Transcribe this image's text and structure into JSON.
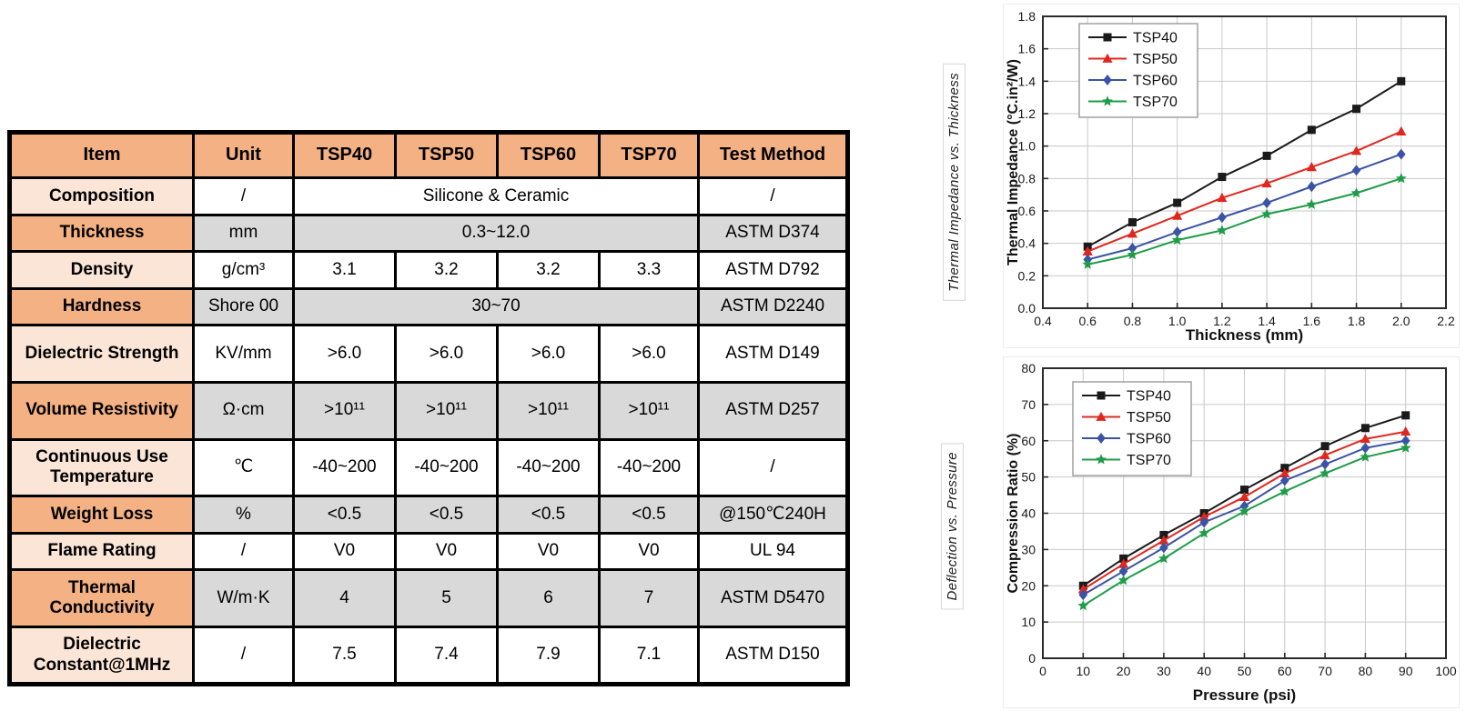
{
  "table": {
    "headers": [
      "Item",
      "Unit",
      "TSP40",
      "TSP50",
      "TSP60",
      "TSP70",
      "Test Method"
    ],
    "rows": [
      {
        "item": "Composition",
        "unit": "/",
        "merged_value": "Silicone & Ceramic",
        "test_method": "/"
      },
      {
        "item": "Thickness",
        "unit": "mm",
        "merged_value": "0.3~12.0",
        "test_method": "ASTM D374"
      },
      {
        "item": "Density",
        "unit": "g/cm³",
        "values": [
          "3.1",
          "3.2",
          "3.2",
          "3.3"
        ],
        "test_method": "ASTM D792"
      },
      {
        "item": "Hardness",
        "unit": "Shore 00",
        "merged_value": "30~70",
        "test_method": "ASTM D2240"
      },
      {
        "item": "Dielectric Strength",
        "unit": "KV/mm",
        "values": [
          ">6.0",
          ">6.0",
          ">6.0",
          ">6.0"
        ],
        "test_method": "ASTM D149"
      },
      {
        "item": "Volume Resistivity",
        "unit": "Ω·cm",
        "values": [
          ">10¹¹",
          ">10¹¹",
          ">10¹¹",
          ">10¹¹"
        ],
        "test_method": "ASTM D257"
      },
      {
        "item": "Continuous Use Temperature",
        "unit": "℃",
        "values": [
          "-40~200",
          "-40~200",
          "-40~200",
          "-40~200"
        ],
        "test_method": "/"
      },
      {
        "item": "Weight Loss",
        "unit": "%",
        "values": [
          "<0.5",
          "<0.5",
          "<0.5",
          "<0.5"
        ],
        "test_method": "@150℃240H"
      },
      {
        "item": "Flame Rating",
        "unit": "/",
        "values": [
          "V0",
          "V0",
          "V0",
          "V0"
        ],
        "test_method": "UL 94"
      },
      {
        "item": "Thermal Conductivity",
        "unit": "W/m·K",
        "values": [
          "4",
          "5",
          "6",
          "7"
        ],
        "test_method": "ASTM D5470"
      },
      {
        "item": "Dielectric Constant@1MHz",
        "unit": "/",
        "values": [
          "7.5",
          "7.4",
          "7.9",
          "7.1"
        ],
        "test_method": "ASTM D150"
      }
    ],
    "colors": {
      "header_bg": "#F4B183",
      "item_row_light": "#FBE5D6",
      "item_row_orange": "#F4B183",
      "striped_row": "#D9D9D9",
      "border": "#000000"
    }
  },
  "side_labels": {
    "top": "Thermal Impedance vs. Thickness",
    "bottom": "Deflection vs. Pressure"
  },
  "chart_data": [
    {
      "type": "line",
      "title": "",
      "xlabel": "Thickness (mm)",
      "ylabel": "Thermal Impedance (°C.in²/W)",
      "xlim": [
        0.4,
        2.2
      ],
      "ylim": [
        0.0,
        1.8
      ],
      "xticks": [
        0.4,
        0.6,
        0.8,
        1.0,
        1.2,
        1.4,
        1.6,
        1.8,
        2.0,
        2.2
      ],
      "xtick_labels": [
        "0.4",
        "0.6",
        "0.8",
        "1.0",
        "1.2",
        "1.4",
        "1.6",
        "1.8",
        "2.0",
        "2.2"
      ],
      "yticks": [
        0.0,
        0.2,
        0.4,
        0.6,
        0.8,
        1.0,
        1.2,
        1.4,
        1.6,
        1.8
      ],
      "ytick_labels": [
        "0.0",
        "0.2",
        "0.4",
        "0.6",
        "0.8",
        "1.0",
        "1.2",
        "1.4",
        "1.6",
        "1.8"
      ],
      "grid": true,
      "legend_position": "top-left",
      "x": [
        0.6,
        0.8,
        1.0,
        1.2,
        1.4,
        1.6,
        1.8,
        2.0
      ],
      "series": [
        {
          "name": "TSP40",
          "color": "#1a1a1a",
          "marker": "square",
          "values": [
            0.38,
            0.53,
            0.65,
            0.81,
            0.94,
            1.1,
            1.23,
            1.4
          ]
        },
        {
          "name": "TSP50",
          "color": "#e0271f",
          "marker": "triangle",
          "values": [
            0.35,
            0.46,
            0.57,
            0.68,
            0.77,
            0.87,
            0.97,
            1.09
          ]
        },
        {
          "name": "TSP60",
          "color": "#3b53a4",
          "marker": "diamond",
          "values": [
            0.3,
            0.37,
            0.47,
            0.56,
            0.65,
            0.75,
            0.85,
            0.95
          ]
        },
        {
          "name": "TSP70",
          "color": "#1f9c47",
          "marker": "star",
          "values": [
            0.27,
            0.33,
            0.42,
            0.48,
            0.58,
            0.64,
            0.71,
            0.8
          ]
        }
      ]
    },
    {
      "type": "line",
      "title": "",
      "xlabel": "Pressure (psi)",
      "ylabel": "Compression Ratio (%)",
      "xlim": [
        0,
        100
      ],
      "ylim": [
        0,
        80
      ],
      "xticks": [
        0,
        10,
        20,
        30,
        40,
        50,
        60,
        70,
        80,
        90,
        100
      ],
      "xtick_labels": [
        "0",
        "10",
        "20",
        "30",
        "40",
        "50",
        "60",
        "70",
        "80",
        "90",
        "100"
      ],
      "yticks": [
        0,
        10,
        20,
        30,
        40,
        50,
        60,
        70,
        80
      ],
      "ytick_labels": [
        "0",
        "10",
        "20",
        "30",
        "40",
        "50",
        "60",
        "70",
        "80"
      ],
      "grid": true,
      "legend_position": "top-left",
      "x": [
        10,
        20,
        30,
        40,
        50,
        60,
        70,
        80,
        90
      ],
      "series": [
        {
          "name": "TSP40",
          "color": "#1a1a1a",
          "marker": "square",
          "values": [
            20.0,
            27.5,
            34.0,
            40.0,
            46.5,
            52.5,
            58.5,
            63.5,
            67.0
          ]
        },
        {
          "name": "TSP50",
          "color": "#e0271f",
          "marker": "triangle",
          "values": [
            19.0,
            26.0,
            32.5,
            39.0,
            44.5,
            51.0,
            56.0,
            60.5,
            62.5
          ]
        },
        {
          "name": "TSP60",
          "color": "#3b53a4",
          "marker": "diamond",
          "values": [
            17.5,
            24.0,
            30.5,
            37.5,
            42.0,
            49.0,
            53.5,
            58.0,
            60.0
          ]
        },
        {
          "name": "TSP70",
          "color": "#1f9c47",
          "marker": "star",
          "values": [
            14.5,
            21.5,
            27.5,
            34.5,
            40.5,
            46.0,
            51.0,
            55.5,
            58.0
          ]
        }
      ]
    }
  ]
}
